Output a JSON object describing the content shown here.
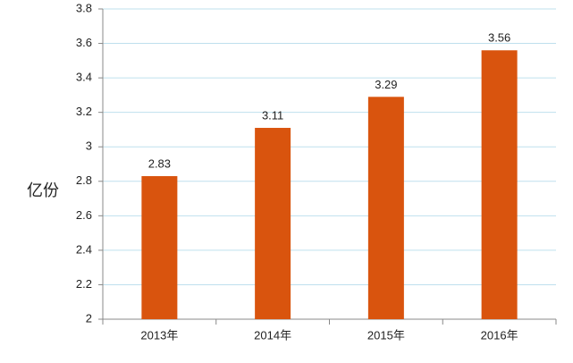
{
  "chart_data": {
    "type": "bar",
    "y_label": "亿份",
    "categories": [
      "2013年",
      "2014年",
      "2015年",
      "2016年"
    ],
    "values": [
      2.83,
      3.11,
      3.29,
      3.56
    ],
    "color": "#d9540e",
    "ylim": [
      2,
      3.8
    ],
    "yticks": [
      2,
      2.2,
      2.4,
      2.6,
      2.8,
      3,
      3.2,
      3.4,
      3.6,
      3.8
    ],
    "grid": true,
    "data_labels": true
  }
}
